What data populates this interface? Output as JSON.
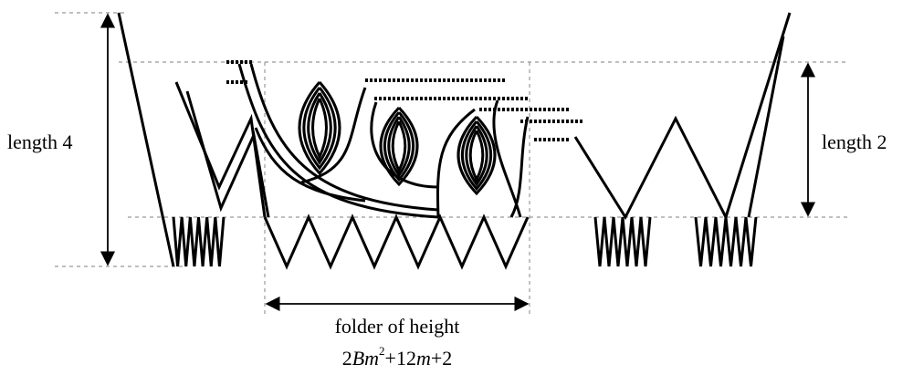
{
  "labels": {
    "left": "length 4",
    "right": "length 2",
    "bottom": "folder of height"
  },
  "formula": [
    "2",
    "B",
    "m",
    "2",
    "+12",
    "m",
    "+2"
  ]
}
